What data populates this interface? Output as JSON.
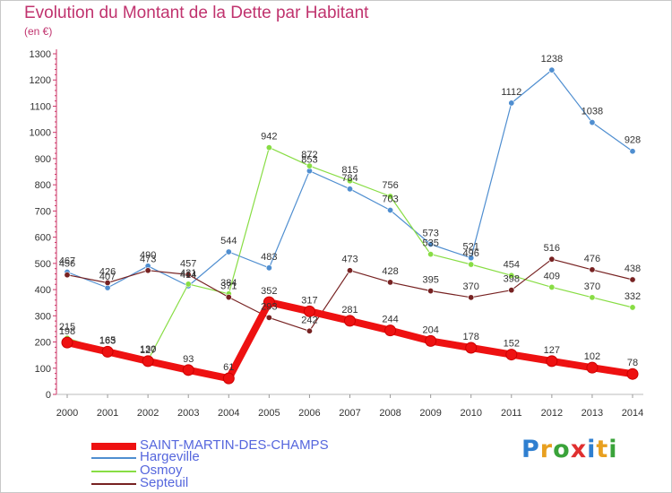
{
  "title": "Evolution du Montant de la Dette par Habitant",
  "unit_label": "(en €)",
  "logo_text": "Proxiti",
  "chart_data": {
    "type": "line",
    "title": "Evolution du Montant de la Dette par Habitant",
    "ylabel": "(en €)",
    "xlabel": "",
    "x": [
      2000,
      2001,
      2002,
      2003,
      2004,
      2005,
      2006,
      2007,
      2008,
      2009,
      2010,
      2011,
      2012,
      2013,
      2014
    ],
    "ylim": [
      0,
      1300
    ],
    "yticks": [
      0,
      100,
      200,
      300,
      400,
      500,
      600,
      700,
      800,
      900,
      1000,
      1100,
      1200,
      1300
    ],
    "grid": false,
    "legend_position": "bottom-left",
    "series": [
      {
        "name": "SAINT-MARTIN-DES-CHAMPS",
        "color": "#ee1111",
        "values": [
          198,
          163,
          127,
          93,
          61,
          352,
          317,
          281,
          244,
          204,
          178,
          152,
          127,
          102,
          78
        ]
      },
      {
        "name": "Hargeville",
        "color": "#4f8ed0",
        "values": [
          467,
          407,
          490,
          414,
          544,
          483,
          853,
          784,
          703,
          573,
          521,
          1112,
          1238,
          1038,
          928
        ]
      },
      {
        "name": "Osmoy",
        "color": "#88dd44",
        "values": [
          215,
          165,
          130,
          421,
          384,
          942,
          872,
          815,
          756,
          535,
          496,
          454,
          409,
          370,
          332
        ]
      },
      {
        "name": "Septeuil",
        "color": "#772222",
        "values": [
          456,
          426,
          473,
          457,
          371,
          293,
          242,
          473,
          428,
          395,
          370,
          398,
          516,
          476,
          438
        ]
      }
    ]
  }
}
